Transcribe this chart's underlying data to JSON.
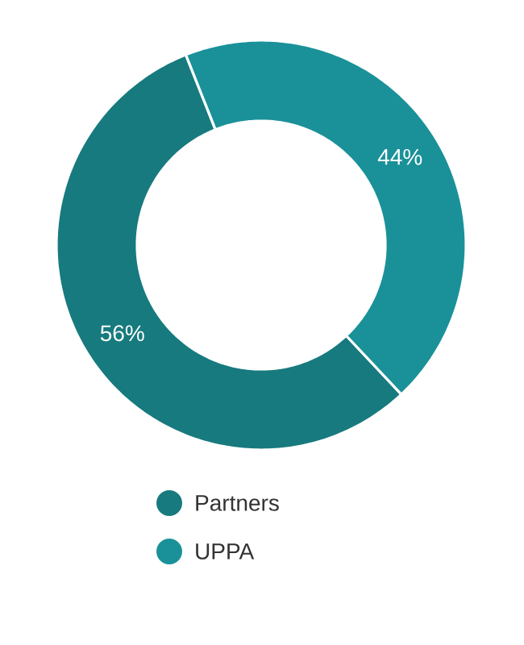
{
  "chart_data": {
    "type": "donut",
    "categories": [
      "Partners",
      "UPPA"
    ],
    "values": [
      56,
      44
    ],
    "value_labels": [
      "56%",
      "44%"
    ],
    "colors": [
      "#177a7e",
      "#1a9199"
    ],
    "legend": "bottom"
  }
}
